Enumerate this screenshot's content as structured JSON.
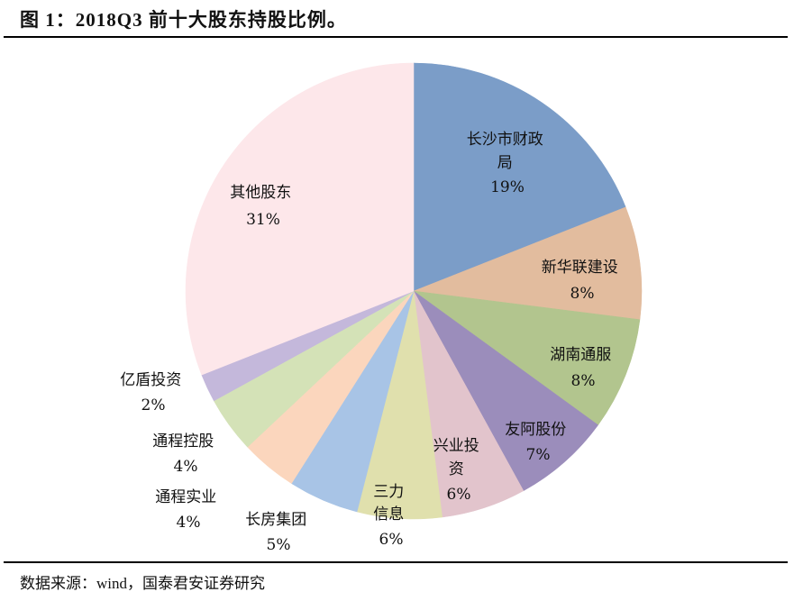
{
  "header": {
    "title": "图 1：2018Q3 前十大股东持股比例。"
  },
  "footer": {
    "source": "数据来源：wind，国泰君安证券研究"
  },
  "chart_data": {
    "type": "pie",
    "title": "2018Q3 前十大股东持股比例",
    "unit": "%",
    "start_angle": "12 o'clock, clockwise",
    "categories": [
      "长沙市财政局",
      "新华联建设",
      "湖南通服",
      "友阿股份",
      "兴业投资",
      "三力信息",
      "长房集团",
      "通程实业",
      "通程控股",
      "亿盾投资",
      "其他股东"
    ],
    "values": [
      19,
      8,
      8,
      7,
      6,
      6,
      5,
      4,
      4,
      2,
      31
    ],
    "labels": [
      "19%",
      "8%",
      "8%",
      "7%",
      "6%",
      "6%",
      "5%",
      "4%",
      "4%",
      "2%",
      "31%"
    ],
    "colors": [
      "#7b9dc8",
      "#e2bc9e",
      "#b2c58e",
      "#9b8dbb",
      "#e2c4cc",
      "#e0e0ad",
      "#a8c4e6",
      "#fbd6bd",
      "#d4e2b7",
      "#c4b8db",
      "#fde7ea"
    ]
  },
  "slice_labels": [
    {
      "lines": [
        "长沙市财政",
        "局",
        "19%"
      ]
    },
    {
      "lines": [
        "新华联建设",
        "8%"
      ]
    },
    {
      "lines": [
        "湖南通服",
        "8%"
      ]
    },
    {
      "lines": [
        "友阿股份",
        "7%"
      ]
    },
    {
      "lines": [
        "兴业投",
        "资",
        "6%"
      ]
    },
    {
      "lines": [
        "三力",
        "信息",
        "6%"
      ]
    },
    {
      "lines": [
        "长房集团",
        "5%"
      ]
    },
    {
      "lines": [
        "通程实业",
        "4%"
      ]
    },
    {
      "lines": [
        "通程控股",
        "4%"
      ]
    },
    {
      "lines": [
        "亿盾投资",
        "2%"
      ]
    },
    {
      "lines": [
        "其他股东",
        "31%"
      ]
    }
  ]
}
